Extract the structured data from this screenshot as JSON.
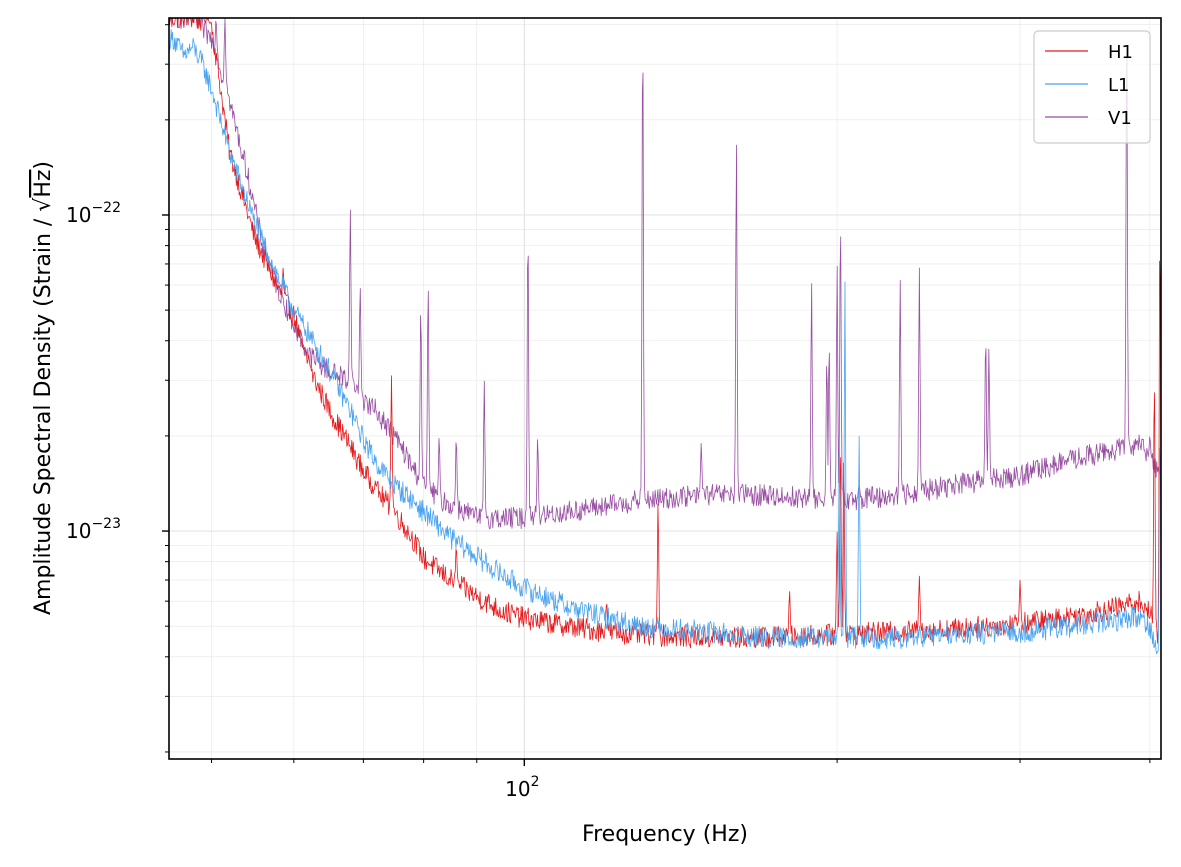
{
  "chart_data": {
    "type": "line",
    "xlabel": "Frequency (Hz)",
    "ylabel_prefix": "Amplitude Spectral Density (Strain / ",
    "ylabel_root": "√",
    "ylabel_unit": "Hz",
    "ylabel_suffix": ")",
    "x_scale": "log",
    "y_scale": "log",
    "xlim": [
      45.5,
      410
    ],
    "ylim": [
      1.9e-24,
      4.2e-22
    ],
    "grid": true,
    "legend_position": "top-right",
    "x_ticks_major": [
      {
        "value": 100,
        "base": "10",
        "exp": "2"
      }
    ],
    "x_ticks_minor": [
      50,
      60,
      70,
      80,
      90,
      200,
      300,
      400
    ],
    "y_ticks_major": [
      {
        "value": 1e-23,
        "base": "10",
        "exp": "−23"
      },
      {
        "value": 1e-22,
        "base": "10",
        "exp": "−22"
      }
    ],
    "y_ticks_minor": [
      2e-24,
      3e-24,
      4e-24,
      5e-24,
      6e-24,
      7e-24,
      8e-24,
      9e-24,
      2e-23,
      3e-23,
      4e-23,
      5e-23,
      6e-23,
      7e-23,
      8e-23,
      9e-23,
      2e-22,
      3e-22,
      4e-22
    ],
    "series": [
      {
        "name": "H1",
        "color": "#e41a1c",
        "x": [
          46,
          48,
          50,
          52,
          55,
          58,
          60,
          62,
          65,
          68,
          70,
          72,
          75,
          78,
          80,
          85,
          90,
          95,
          100,
          110,
          120,
          130,
          150,
          170,
          200,
          230,
          260,
          300,
          340,
          370,
          390,
          400,
          405,
          408
        ],
        "y": [
          4.2e-22,
          4.2e-22,
          4e-22,
          1.6e-22,
          8.5e-23,
          5.8e-23,
          4.8e-23,
          3.3e-23,
          2.4e-23,
          1.85e-23,
          1.55e-23,
          1.35e-23,
          1.15e-23,
          9.5e-24,
          8.2e-24,
          7e-24,
          6.2e-24,
          5.6e-24,
          5.3e-24,
          5e-24,
          4.8e-24,
          4.7e-24,
          4.6e-24,
          4.6e-24,
          4.7e-24,
          4.8e-24,
          4.9e-24,
          5.1e-24,
          5.4e-24,
          5.7e-24,
          6e-24,
          5.5e-24,
          4.8e-24,
          4.4e-24
        ],
        "peaks": [
          {
            "x": 46.5,
            "y": 4.2e-22
          },
          {
            "x": 47.3,
            "y": 4.2e-22
          },
          {
            "x": 49.1,
            "y": 4.2e-22
          },
          {
            "x": 49.6,
            "y": 4.2e-22
          },
          {
            "x": 54.5,
            "y": 7e-23
          },
          {
            "x": 56.0,
            "y": 6.4e-23
          },
          {
            "x": 57.5,
            "y": 5.2e-23
          },
          {
            "x": 58.6,
            "y": 6.8e-23
          },
          {
            "x": 62.0,
            "y": 3.6e-23
          },
          {
            "x": 64.5,
            "y": 2e-23
          },
          {
            "x": 68.0,
            "y": 1.6e-23
          },
          {
            "x": 72.0,
            "y": 1.4e-23
          },
          {
            "x": 75.0,
            "y": 1.1e-23
          },
          {
            "x": 74.5,
            "y": 3.1e-23
          },
          {
            "x": 86.0,
            "y": 9e-24
          },
          {
            "x": 120.0,
            "y": 6e-24
          },
          {
            "x": 134.5,
            "y": 1.25e-23
          },
          {
            "x": 180.0,
            "y": 6.5e-24
          },
          {
            "x": 200.0,
            "y": 1e-23
          },
          {
            "x": 201.5,
            "y": 1.9e-23
          },
          {
            "x": 203.0,
            "y": 1.8e-23
          },
          {
            "x": 240.0,
            "y": 7.2e-24
          },
          {
            "x": 300.0,
            "y": 7e-24
          },
          {
            "x": 404.0,
            "y": 3.2e-23
          },
          {
            "x": 409.0,
            "y": 1e-22
          }
        ]
      },
      {
        "name": "L1",
        "color": "#4aa3f0",
        "x": [
          46,
          47,
          48,
          49,
          50,
          52,
          55,
          58,
          60,
          62,
          65,
          68,
          70,
          72,
          75,
          78,
          80,
          85,
          90,
          95,
          100,
          110,
          120,
          130,
          150,
          170,
          200,
          230,
          260,
          300,
          340,
          370,
          390,
          400,
          405,
          408
        ],
        "y": [
          3.6e-22,
          3.2e-22,
          3.4e-22,
          3e-22,
          2.5e-22,
          1.6e-22,
          9.5e-23,
          6.3e-23,
          5e-23,
          4.2e-23,
          3.2e-23,
          2.4e-23,
          1.95e-23,
          1.65e-23,
          1.4e-23,
          1.25e-23,
          1.15e-23,
          9.5e-24,
          8.3e-24,
          7.3e-24,
          6.6e-24,
          5.8e-24,
          5.3e-24,
          5e-24,
          4.8e-24,
          4.6e-24,
          4.6e-24,
          4.6e-24,
          4.7e-24,
          4.8e-24,
          5e-24,
          5.2e-24,
          5.4e-24,
          5e-24,
          4.3e-24,
          3.9e-24
        ],
        "peaks": [
          {
            "x": 203.5,
            "y": 6.2e-23
          },
          {
            "x": 201.0,
            "y": 2e-23
          },
          {
            "x": 210.0,
            "y": 2e-23
          },
          {
            "x": 409.0,
            "y": 2.2e-23
          }
        ]
      },
      {
        "name": "V1",
        "color": "#984ea3",
        "x": [
          46,
          48,
          50,
          52,
          54,
          56,
          58,
          60,
          62,
          65,
          68,
          70,
          72,
          75,
          78,
          80,
          82,
          85,
          88,
          90,
          95,
          100,
          110,
          120,
          130,
          150,
          170,
          200,
          230,
          260,
          300,
          340,
          370,
          390,
          400,
          405,
          408
        ],
        "y": [
          4.2e-22,
          4.2e-22,
          3.6e-22,
          2.3e-22,
          1.4e-22,
          8e-23,
          5.8e-23,
          4.5e-23,
          3.6e-23,
          3.2e-23,
          3e-23,
          2.6e-23,
          2.4e-23,
          2e-23,
          1.6e-23,
          1.4e-23,
          1.3e-23,
          1.2e-23,
          1.15e-23,
          1.1e-23,
          1.1e-23,
          1.1e-23,
          1.15e-23,
          1.2e-23,
          1.25e-23,
          1.3e-23,
          1.3e-23,
          1.25e-23,
          1.3e-23,
          1.4e-23,
          1.5e-23,
          1.7e-23,
          1.8e-23,
          1.9e-23,
          1.7e-23,
          1.6e-23,
          1.6e-23
        ],
        "peaks": [
          {
            "x": 50.5,
            "y": 4.2e-22
          },
          {
            "x": 51.5,
            "y": 4.2e-22
          },
          {
            "x": 68.0,
            "y": 1.05e-22
          },
          {
            "x": 69.5,
            "y": 6e-23
          },
          {
            "x": 79.5,
            "y": 5.3e-23
          },
          {
            "x": 80.8,
            "y": 6.2e-23
          },
          {
            "x": 82.8,
            "y": 2e-23
          },
          {
            "x": 86.0,
            "y": 2e-23
          },
          {
            "x": 91.5,
            "y": 3e-23
          },
          {
            "x": 100.8,
            "y": 9.5e-23
          },
          {
            "x": 103.0,
            "y": 2e-23
          },
          {
            "x": 130.0,
            "y": 4.2e-22
          },
          {
            "x": 148.0,
            "y": 1.9e-23
          },
          {
            "x": 160.0,
            "y": 1.8e-22
          },
          {
            "x": 189.0,
            "y": 6.2e-23
          },
          {
            "x": 195.5,
            "y": 3.6e-23
          },
          {
            "x": 196.5,
            "y": 4e-23
          },
          {
            "x": 200.0,
            "y": 7e-23
          },
          {
            "x": 201.5,
            "y": 1e-22
          },
          {
            "x": 210.0,
            "y": 1.4e-23
          },
          {
            "x": 230.0,
            "y": 6.3e-23
          },
          {
            "x": 240.0,
            "y": 6.8e-23
          },
          {
            "x": 278.0,
            "y": 4.2e-23
          },
          {
            "x": 280.0,
            "y": 3.8e-23
          },
          {
            "x": 380.0,
            "y": 4.2e-22
          },
          {
            "x": 400.0,
            "y": 2e-23
          }
        ]
      }
    ]
  }
}
